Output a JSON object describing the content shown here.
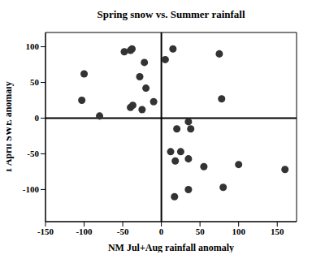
{
  "chart_data": {
    "type": "scatter",
    "title": "Spring snow vs. Summer rainfall",
    "x_label": "NM Jul+Aug rainfall anomaly",
    "y_label": "1 April SWE anomaly",
    "color": "#333333",
    "marker": "circle",
    "x": [
      -100,
      -103,
      -80,
      -48,
      -40,
      -38,
      -28,
      -22,
      -20,
      -25,
      -40,
      -37,
      -10,
      5,
      15,
      75,
      78,
      20,
      18,
      12,
      17,
      25,
      35,
      38,
      35,
      35,
      55,
      80,
      100,
      160
    ],
    "values": [
      62,
      25,
      3,
      93,
      95,
      97,
      58,
      78,
      42,
      12,
      15,
      18,
      23,
      82,
      97,
      90,
      27,
      -15,
      -60,
      -47,
      -110,
      -47,
      -5,
      -15,
      -57,
      -100,
      -68,
      -97,
      -65,
      -72
    ],
    "xlim": [
      -150,
      175
    ],
    "ylim": [
      -145,
      120
    ],
    "xticks": [
      -150,
      -100,
      -50,
      0,
      50,
      100,
      150
    ],
    "yticks": [
      -100,
      -50,
      0,
      50,
      100
    ]
  }
}
